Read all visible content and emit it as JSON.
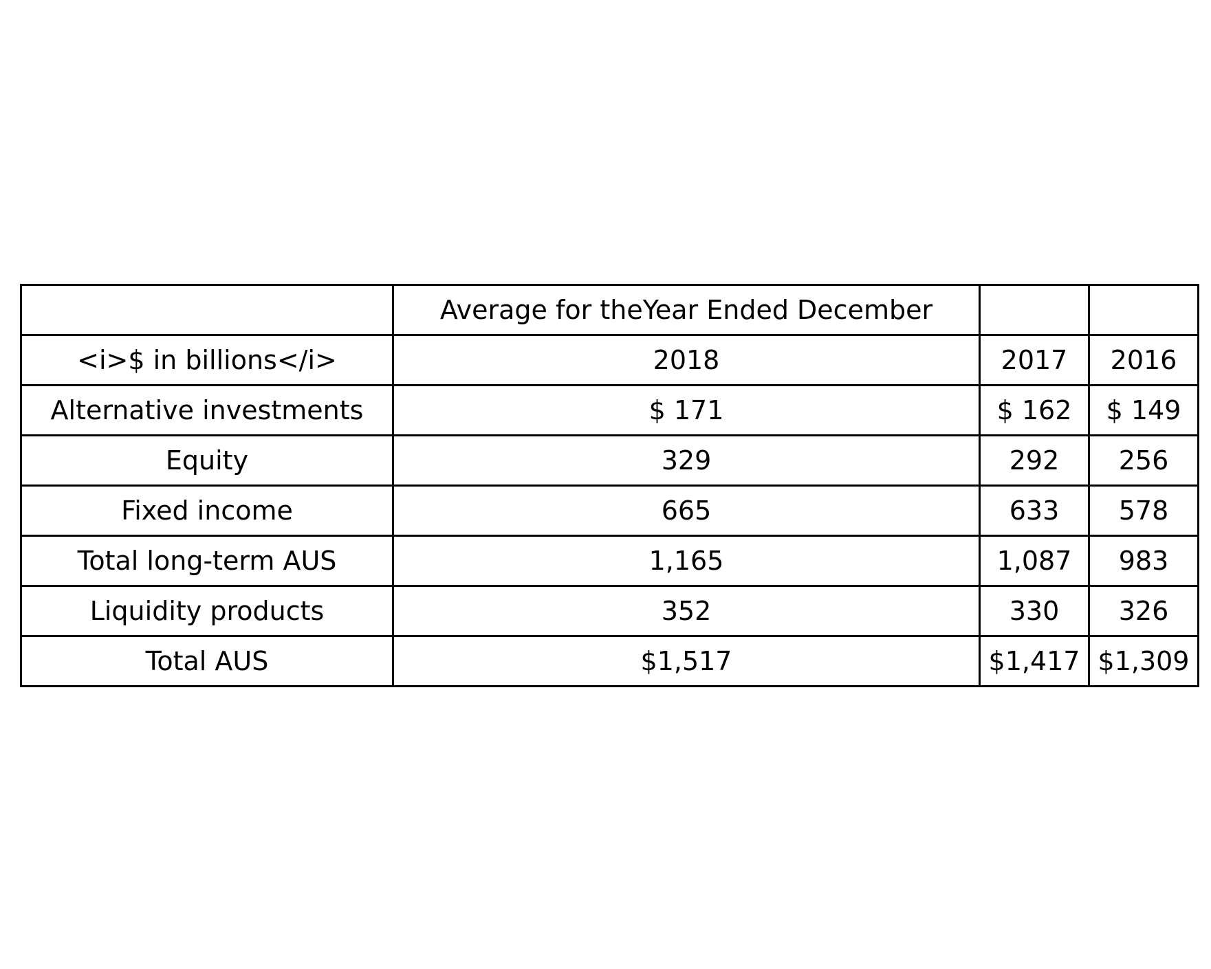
{
  "chart_data": {
    "type": "table",
    "header_rows": [
      [
        "",
        "Average for theYear Ended December",
        "",
        ""
      ],
      [
        "<i>$ in billions</i>",
        "2018",
        "2017",
        "2016"
      ]
    ],
    "columns": [
      "<i>$ in billions</i>",
      "2018",
      "2017",
      "2016"
    ],
    "rows": [
      [
        "Alternative investments",
        "$ 171",
        "$ 162",
        "$ 149"
      ],
      [
        "Equity",
        "329",
        "292",
        "256"
      ],
      [
        "Fixed income",
        "665",
        "633",
        "578"
      ],
      [
        "Total long-term AUS",
        "1,165",
        "1,087",
        "983"
      ],
      [
        "Liquidity products",
        "352",
        "330",
        "326"
      ],
      [
        "Total AUS",
        "$1,517",
        "$1,417",
        "$1,309"
      ]
    ],
    "series": [
      {
        "name": "2018",
        "values": [
          171,
          329,
          665,
          1165,
          352,
          1517
        ]
      },
      {
        "name": "2017",
        "values": [
          162,
          292,
          633,
          1087,
          330,
          1417
        ]
      },
      {
        "name": "2016",
        "values": [
          149,
          256,
          578,
          983,
          326,
          1309
        ]
      }
    ],
    "categories": [
      "Alternative investments",
      "Equity",
      "Fixed income",
      "Total long-term AUS",
      "Liquidity products",
      "Total AUS"
    ]
  }
}
